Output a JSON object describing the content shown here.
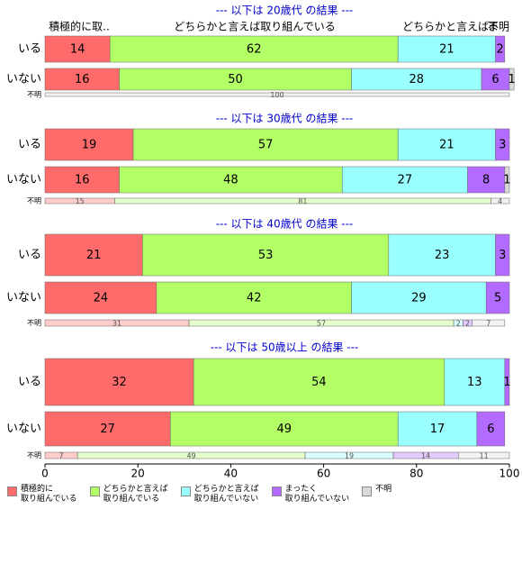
{
  "chart_data": {
    "type": "bar",
    "stacked": true,
    "orientation": "horizontal",
    "xlim": [
      0,
      100
    ],
    "xticks": [
      0,
      20,
      40,
      60,
      80,
      100
    ],
    "series": [
      {
        "name": "積極的に\n取り組んでいる",
        "color": "#ff6b6b"
      },
      {
        "name": "どちらかと言えば\n取り組んでいる",
        "color": "#b3ff66"
      },
      {
        "name": "どちらかと言えば\n取り組んでいない",
        "color": "#99ffff"
      },
      {
        "name": "まったく\n取り組んでいない",
        "color": "#b36bff"
      },
      {
        "name": "不明",
        "color": "#d9d9d9"
      }
    ],
    "panels": [
      {
        "title": "--- 以下は 20歳代 の結果 ---",
        "column_labels": [
          "積極的に取..",
          "どちらかと言えば取り組んでいる",
          "どちらかと言えば.",
          "ま",
          "不明"
        ],
        "categories": [
          "いる",
          "いない",
          "不明"
        ],
        "values": [
          [
            14,
            62,
            21,
            2,
            null
          ],
          [
            16,
            50,
            28,
            6,
            1
          ],
          [
            null,
            null,
            null,
            null,
            100
          ]
        ]
      },
      {
        "title": "--- 以下は 30歳代 の結果 ---",
        "categories": [
          "いる",
          "いない",
          "不明"
        ],
        "values": [
          [
            19,
            57,
            21,
            3,
            null
          ],
          [
            16,
            48,
            27,
            8,
            1
          ],
          [
            15,
            81,
            null,
            null,
            4
          ]
        ]
      },
      {
        "title": "--- 以下は 40歳代 の結果 ---",
        "categories": [
          "いる",
          "いない",
          "不明"
        ],
        "values": [
          [
            21,
            53,
            23,
            3,
            null
          ],
          [
            24,
            42,
            29,
            5,
            null
          ],
          [
            31,
            57,
            2,
            2,
            7
          ]
        ]
      },
      {
        "title": "--- 以下は 50歳以上 の結果 ---",
        "categories": [
          "いる",
          "いない",
          "不明"
        ],
        "values": [
          [
            32,
            54,
            13,
            1,
            null
          ],
          [
            27,
            49,
            17,
            6,
            null
          ],
          [
            7,
            49,
            19,
            14,
            11
          ]
        ]
      }
    ]
  }
}
